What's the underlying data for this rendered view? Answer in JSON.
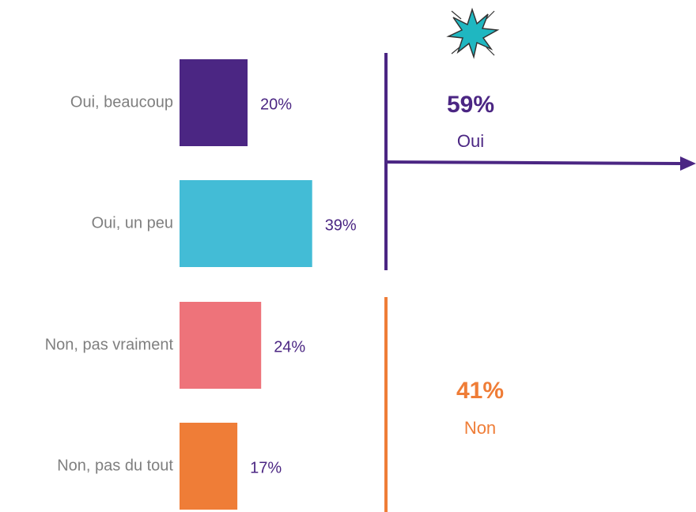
{
  "chart_data": {
    "type": "bar",
    "categories": [
      "Oui, beaucoup",
      "Oui, un peu",
      "Non, pas vraiment",
      "Non, pas du tout"
    ],
    "values": [
      20,
      39,
      24,
      17
    ],
    "value_labels": [
      "20%",
      "39%",
      "24%",
      "17%"
    ],
    "colors": [
      "#4b2683",
      "#43bcd6",
      "#ee737a",
      "#ef7d37"
    ],
    "groups": {
      "names": [
        "Oui",
        "Non"
      ],
      "values": [
        59,
        41
      ],
      "value_labels": [
        "59%",
        "41%"
      ],
      "colors": [
        "#4b2683",
        "#ef7d37"
      ]
    }
  }
}
